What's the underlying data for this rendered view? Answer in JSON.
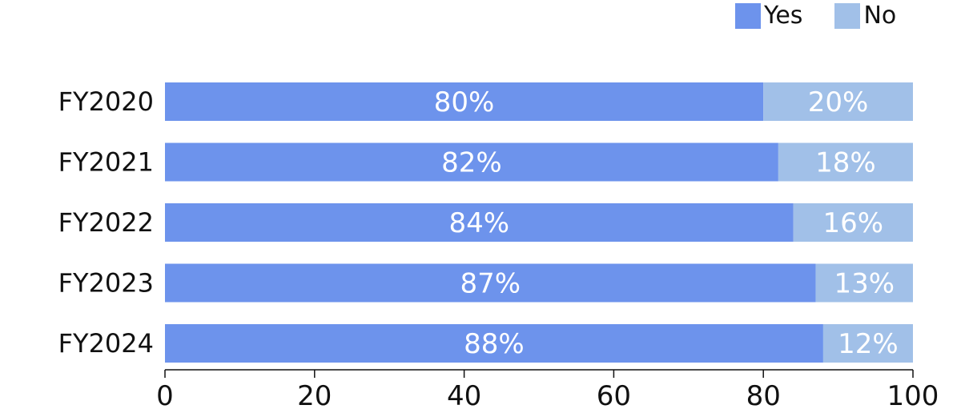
{
  "chart_data": {
    "type": "bar",
    "orientation": "horizontal",
    "stacked": true,
    "categories": [
      "FY2020",
      "FY2021",
      "FY2022",
      "FY2023",
      "FY2024"
    ],
    "series": [
      {
        "name": "Yes",
        "values": [
          80,
          82,
          84,
          87,
          88
        ],
        "color": "#6d93ec"
      },
      {
        "name": "No",
        "values": [
          20,
          18,
          16,
          13,
          12
        ],
        "color": "#a1c0e8"
      }
    ],
    "data_labels": [
      [
        "80%",
        "82%",
        "84%",
        "87%",
        "88%"
      ],
      [
        "20%",
        "18%",
        "16%",
        "13%",
        "12%"
      ]
    ],
    "xlim": [
      0,
      100
    ],
    "xticks": [
      "0",
      "20",
      "40",
      "60",
      "80",
      "100"
    ],
    "legend_position": "top-right",
    "grid": false
  }
}
